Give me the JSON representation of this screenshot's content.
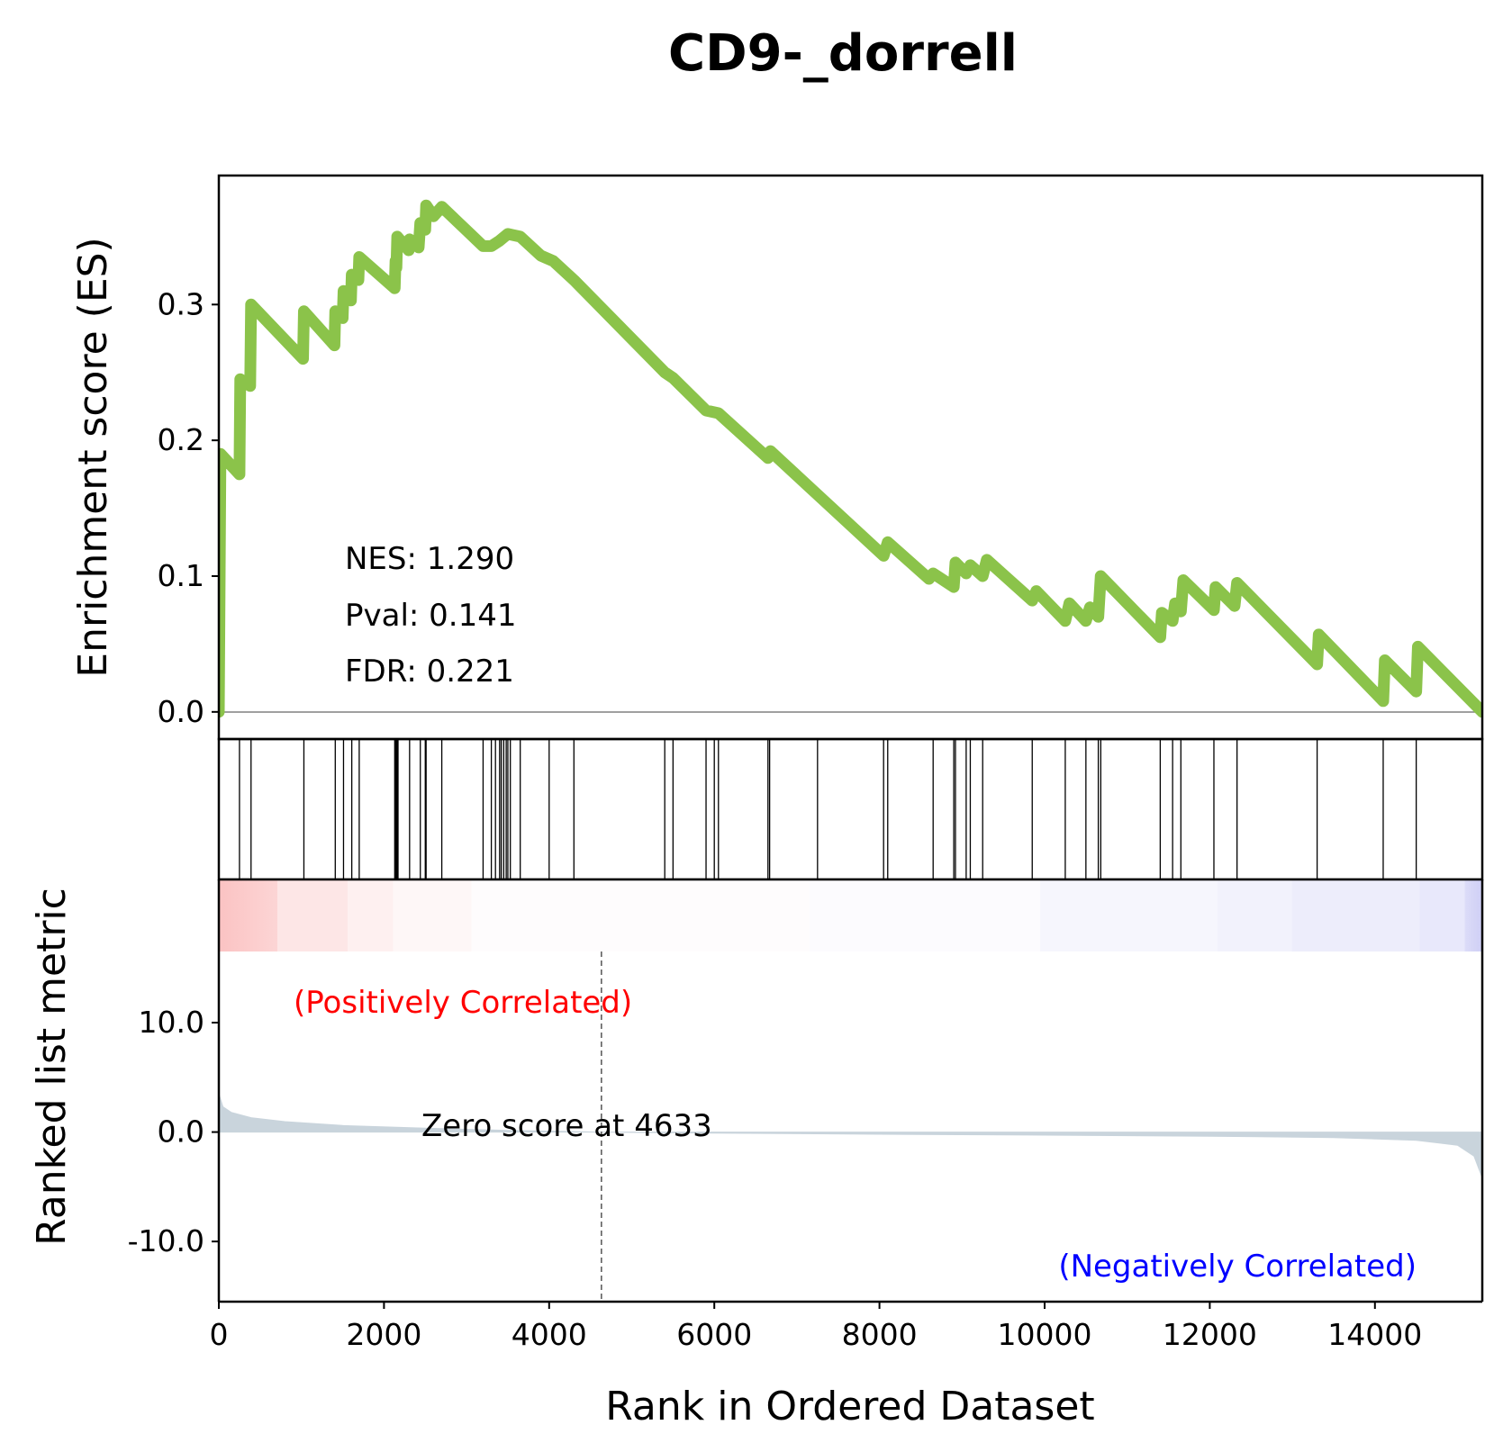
{
  "chart_data": {
    "type": "line",
    "title": "CD9-_dorrell",
    "xlabel": "Rank in Ordered Dataset",
    "ylabel_es": "Enrichment score (ES)",
    "ylabel_rank": "Ranked list metric",
    "xlim": [
      0,
      15300
    ],
    "x_ticks": [
      0,
      2000,
      4000,
      6000,
      8000,
      10000,
      12000,
      14000
    ],
    "x_tick_labels": [
      "0",
      "2000",
      "4000",
      "6000",
      "8000",
      "10000",
      "12000",
      "14000"
    ],
    "es_ylim": [
      -0.02,
      0.395
    ],
    "es_ticks": [
      0.0,
      0.1,
      0.2,
      0.3
    ],
    "es_tick_labels": [
      "0.0",
      "0.1",
      "0.2",
      "0.3"
    ],
    "rank_ylim": [
      -15.5,
      16.5
    ],
    "rank_ticks": [
      10.0,
      0.0,
      -10.0
    ],
    "rank_tick_labels": [
      "10.0",
      "0.0",
      "-10.0"
    ],
    "line_color": "#8bc34a",
    "stats": {
      "nes": "NES: 1.290",
      "pval": "Pval: 0.141",
      "fdr": "FDR: 0.221"
    },
    "pos_label": "(Positively Correlated)",
    "neg_label": "(Negatively Correlated)",
    "zero_label": "Zero score at 4633",
    "zero_rank": 4633,
    "pos_color": "#ff0000",
    "neg_color": "#0000ff",
    "es_curve": [
      [
        0,
        0.0
      ],
      [
        20,
        0.19
      ],
      [
        250,
        0.175
      ],
      [
        260,
        0.245
      ],
      [
        380,
        0.24
      ],
      [
        390,
        0.3
      ],
      [
        1020,
        0.26
      ],
      [
        1030,
        0.295
      ],
      [
        1400,
        0.27
      ],
      [
        1410,
        0.295
      ],
      [
        1500,
        0.29
      ],
      [
        1510,
        0.31
      ],
      [
        1600,
        0.303
      ],
      [
        1610,
        0.322
      ],
      [
        1690,
        0.318
      ],
      [
        1700,
        0.335
      ],
      [
        2130,
        0.312
      ],
      [
        2140,
        0.332
      ],
      [
        2150,
        0.327
      ],
      [
        2160,
        0.35
      ],
      [
        2300,
        0.34
      ],
      [
        2310,
        0.348
      ],
      [
        2420,
        0.342
      ],
      [
        2440,
        0.36
      ],
      [
        2500,
        0.355
      ],
      [
        2510,
        0.373
      ],
      [
        2600,
        0.365
      ],
      [
        2700,
        0.372
      ],
      [
        3200,
        0.343
      ],
      [
        3300,
        0.343
      ],
      [
        3400,
        0.347
      ],
      [
        3500,
        0.352
      ],
      [
        3650,
        0.35
      ],
      [
        3900,
        0.336
      ],
      [
        4050,
        0.332
      ],
      [
        4300,
        0.318
      ],
      [
        5400,
        0.25
      ],
      [
        5500,
        0.246
      ],
      [
        5900,
        0.222
      ],
      [
        6050,
        0.22
      ],
      [
        6650,
        0.187
      ],
      [
        6680,
        0.192
      ],
      [
        7250,
        0.16
      ],
      [
        8050,
        0.115
      ],
      [
        8100,
        0.125
      ],
      [
        8600,
        0.098
      ],
      [
        8650,
        0.102
      ],
      [
        8900,
        0.092
      ],
      [
        8920,
        0.11
      ],
      [
        9050,
        0.102
      ],
      [
        9100,
        0.108
      ],
      [
        9250,
        0.1
      ],
      [
        9300,
        0.112
      ],
      [
        9850,
        0.082
      ],
      [
        9900,
        0.089
      ],
      [
        10250,
        0.067
      ],
      [
        10300,
        0.08
      ],
      [
        10500,
        0.067
      ],
      [
        10550,
        0.077
      ],
      [
        10650,
        0.07
      ],
      [
        10680,
        0.1
      ],
      [
        11400,
        0.055
      ],
      [
        11420,
        0.073
      ],
      [
        11550,
        0.067
      ],
      [
        11580,
        0.08
      ],
      [
        11650,
        0.074
      ],
      [
        11680,
        0.097
      ],
      [
        12050,
        0.075
      ],
      [
        12070,
        0.092
      ],
      [
        12300,
        0.078
      ],
      [
        12330,
        0.095
      ],
      [
        13300,
        0.035
      ],
      [
        13320,
        0.057
      ],
      [
        14100,
        0.008
      ],
      [
        14120,
        0.038
      ],
      [
        14500,
        0.015
      ],
      [
        14520,
        0.048
      ],
      [
        15300,
        0.0
      ]
    ],
    "hits": [
      250,
      390,
      1030,
      1410,
      1510,
      1610,
      1700,
      2130,
      2140,
      2150,
      2160,
      2170,
      2310,
      2440,
      2500,
      2510,
      2700,
      3200,
      3300,
      3350,
      3400,
      3420,
      3450,
      3480,
      3500,
      3530,
      3650,
      4000,
      4300,
      5400,
      5500,
      5900,
      6000,
      6050,
      6650,
      6670,
      7250,
      8050,
      8100,
      8650,
      8900,
      8920,
      9050,
      9100,
      9250,
      9850,
      10250,
      10500,
      10650,
      10680,
      11400,
      11550,
      11650,
      12050,
      12330,
      13300,
      14100,
      14500
    ],
    "rank_metric": [
      [
        0,
        3.5
      ],
      [
        50,
        2.3
      ],
      [
        150,
        1.8
      ],
      [
        400,
        1.3
      ],
      [
        800,
        0.95
      ],
      [
        1500,
        0.6
      ],
      [
        2500,
        0.35
      ],
      [
        3500,
        0.15
      ],
      [
        4633,
        0.0
      ],
      [
        6000,
        -0.1
      ],
      [
        8000,
        -0.2
      ],
      [
        10000,
        -0.28
      ],
      [
        12000,
        -0.38
      ],
      [
        13500,
        -0.5
      ],
      [
        14500,
        -0.75
      ],
      [
        15000,
        -1.2
      ],
      [
        15200,
        -2.2
      ],
      [
        15300,
        -4.2
      ]
    ],
    "heatmap_colors": [
      "#fcd5d5",
      "#fde6e6",
      "#fef0f0",
      "#fef7f7",
      "#fefcfd",
      "#fcfbfe",
      "#f6f6fd",
      "#f2f2fc",
      "#ededfb",
      "#e8e8fb",
      "#dcdcf8"
    ],
    "heatmap_bounds": [
      0,
      700,
      1550,
      2100,
      3050,
      7150,
      9950,
      12100,
      13000,
      14550,
      15100,
      15300
    ]
  }
}
